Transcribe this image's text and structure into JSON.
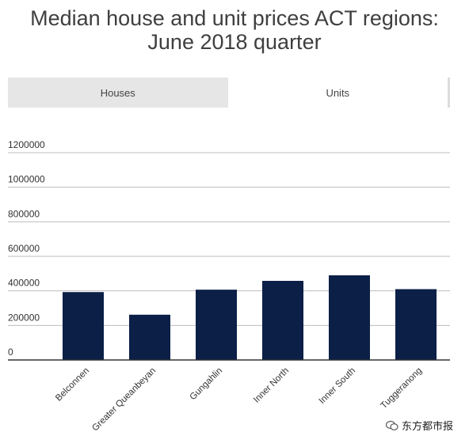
{
  "title": "Median house and unit prices ACT regions:",
  "subtitle": "June 2018 quarter",
  "tabs": [
    {
      "label": "Houses",
      "active": false
    },
    {
      "label": "Units",
      "active": true
    }
  ],
  "watermark": {
    "text": "东方都市报",
    "icon": "wechat-bubble-icon"
  },
  "colors": {
    "bar": "#0b1f47",
    "grid": "#bdbdbd",
    "axis": "#333333"
  },
  "chart_data": {
    "type": "bar",
    "title": "Median house and unit prices ACT regions: June 2018 quarter",
    "categories": [
      "Belconnen",
      "Greater Queanbeyan",
      "Gungahlin",
      "Inner North",
      "Inner South",
      "Tuggeranong"
    ],
    "values": [
      393000,
      262000,
      407000,
      458000,
      490000,
      410000
    ],
    "yticks": [
      0,
      200000,
      400000,
      600000,
      800000,
      1000000,
      1200000
    ],
    "ylim": [
      0,
      1200000
    ],
    "xlabel": "",
    "ylabel": "",
    "grid": true
  }
}
